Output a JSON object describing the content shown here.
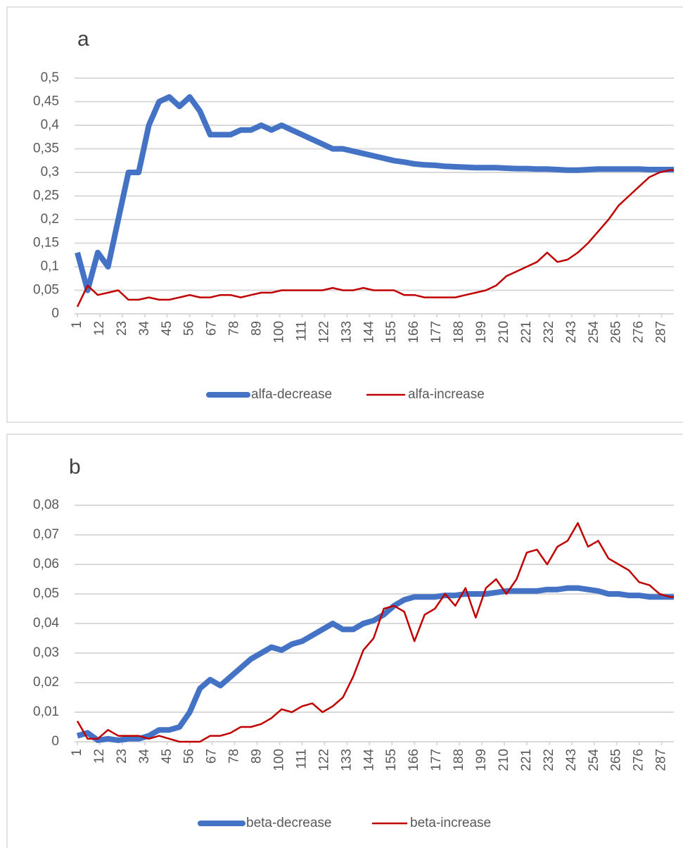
{
  "chart_data": [
    {
      "type": "line",
      "title": "a",
      "x": [
        1,
        6,
        11,
        16,
        21,
        26,
        31,
        36,
        41,
        46,
        51,
        56,
        61,
        66,
        71,
        76,
        81,
        86,
        91,
        96,
        101,
        106,
        111,
        116,
        121,
        126,
        131,
        136,
        141,
        146,
        151,
        156,
        161,
        166,
        171,
        176,
        181,
        186,
        191,
        196,
        201,
        206,
        211,
        216,
        221,
        226,
        231,
        236,
        241,
        246,
        251,
        256,
        261,
        266,
        271,
        276,
        281,
        286,
        291,
        293
      ],
      "xlim": [
        1,
        293
      ],
      "xticks": [
        1,
        12,
        23,
        34,
        45,
        56,
        67,
        78,
        89,
        100,
        111,
        122,
        133,
        144,
        155,
        166,
        177,
        188,
        199,
        210,
        221,
        232,
        243,
        254,
        265,
        276,
        287
      ],
      "ylim": [
        0,
        0.5
      ],
      "yticks": [
        0,
        {
          "value": 0.05,
          "label": "0,05"
        },
        {
          "value": 0.1,
          "label": "0,1"
        },
        {
          "value": 0.15,
          "label": "0,15"
        },
        {
          "value": 0.2,
          "label": "0,2"
        },
        {
          "value": 0.25,
          "label": "0,25"
        },
        {
          "value": 0.3,
          "label": "0,3"
        },
        {
          "value": 0.35,
          "label": "0,35"
        },
        {
          "value": 0.4,
          "label": "0,4"
        },
        {
          "value": 0.45,
          "label": "0,45"
        },
        {
          "value": 0.5,
          "label": "0,5"
        }
      ],
      "grid": true,
      "legend": "bottom",
      "series": [
        {
          "name": "alfa-decrease",
          "color": "#4472c4",
          "values": [
            0.13,
            0.05,
            0.13,
            0.1,
            0.2,
            0.3,
            0.3,
            0.4,
            0.45,
            0.46,
            0.44,
            0.46,
            0.43,
            0.38,
            0.38,
            0.38,
            0.39,
            0.39,
            0.4,
            0.39,
            0.4,
            0.39,
            0.38,
            0.37,
            0.36,
            0.35,
            0.35,
            0.345,
            0.34,
            0.335,
            0.33,
            0.325,
            0.322,
            0.318,
            0.316,
            0.315,
            0.313,
            0.312,
            0.311,
            0.31,
            0.31,
            0.31,
            0.309,
            0.308,
            0.308,
            0.307,
            0.307,
            0.306,
            0.305,
            0.305,
            0.306,
            0.307,
            0.307,
            0.307,
            0.307,
            0.307,
            0.306,
            0.306,
            0.306,
            0.306
          ]
        },
        {
          "name": "alfa-increase",
          "color": "#c00000",
          "values": [
            0.015,
            0.06,
            0.04,
            0.045,
            0.05,
            0.03,
            0.03,
            0.035,
            0.03,
            0.03,
            0.035,
            0.04,
            0.035,
            0.035,
            0.04,
            0.04,
            0.035,
            0.04,
            0.045,
            0.045,
            0.05,
            0.05,
            0.05,
            0.05,
            0.05,
            0.055,
            0.05,
            0.05,
            0.055,
            0.05,
            0.05,
            0.05,
            0.04,
            0.04,
            0.035,
            0.035,
            0.035,
            0.035,
            0.04,
            0.045,
            0.05,
            0.06,
            0.08,
            0.09,
            0.1,
            0.11,
            0.13,
            0.11,
            0.115,
            0.13,
            0.15,
            0.175,
            0.2,
            0.23,
            0.25,
            0.27,
            0.29,
            0.3,
            0.305,
            0.305
          ]
        }
      ]
    },
    {
      "type": "line",
      "title": "b",
      "x": [
        1,
        6,
        11,
        16,
        21,
        26,
        31,
        36,
        41,
        46,
        51,
        56,
        61,
        66,
        71,
        76,
        81,
        86,
        91,
        96,
        101,
        106,
        111,
        116,
        121,
        126,
        131,
        136,
        141,
        146,
        151,
        156,
        161,
        166,
        171,
        176,
        181,
        186,
        191,
        196,
        201,
        206,
        211,
        216,
        221,
        226,
        231,
        236,
        241,
        246,
        251,
        256,
        261,
        266,
        271,
        276,
        281,
        286,
        291,
        293
      ],
      "xlim": [
        1,
        293
      ],
      "xticks": [
        1,
        12,
        23,
        34,
        45,
        56,
        67,
        78,
        89,
        100,
        111,
        122,
        133,
        144,
        155,
        166,
        177,
        188,
        199,
        210,
        221,
        232,
        243,
        254,
        265,
        276,
        287
      ],
      "ylim": [
        0,
        0.08
      ],
      "yticks": [
        0,
        {
          "value": 0.01,
          "label": "0,01"
        },
        {
          "value": 0.02,
          "label": "0,02"
        },
        {
          "value": 0.03,
          "label": "0,03"
        },
        {
          "value": 0.04,
          "label": "0,04"
        },
        {
          "value": 0.05,
          "label": "0,05"
        },
        {
          "value": 0.06,
          "label": "0,06"
        },
        {
          "value": 0.07,
          "label": "0,07"
        },
        {
          "value": 0.08,
          "label": "0,08"
        }
      ],
      "grid": true,
      "legend": "bottom",
      "series": [
        {
          "name": "beta-decrease",
          "color": "#4472c4",
          "values": [
            0.002,
            0.003,
            0.0005,
            0.001,
            0.0005,
            0.001,
            0.001,
            0.002,
            0.004,
            0.004,
            0.005,
            0.01,
            0.018,
            0.021,
            0.019,
            0.022,
            0.025,
            0.028,
            0.03,
            0.032,
            0.031,
            0.033,
            0.034,
            0.036,
            0.038,
            0.04,
            0.038,
            0.038,
            0.04,
            0.041,
            0.043,
            0.046,
            0.048,
            0.049,
            0.049,
            0.049,
            0.0495,
            0.0495,
            0.05,
            0.05,
            0.05,
            0.0505,
            0.051,
            0.051,
            0.051,
            0.051,
            0.0515,
            0.0515,
            0.052,
            0.052,
            0.0515,
            0.051,
            0.05,
            0.05,
            0.0495,
            0.0495,
            0.049,
            0.049,
            0.049,
            0.049
          ]
        },
        {
          "name": "beta-increase",
          "color": "#c00000",
          "values": [
            0.007,
            0.001,
            0.001,
            0.004,
            0.002,
            0.002,
            0.002,
            0.001,
            0.002,
            0.001,
            0,
            0,
            0,
            0.002,
            0.002,
            0.003,
            0.005,
            0.005,
            0.006,
            0.008,
            0.011,
            0.01,
            0.012,
            0.013,
            0.01,
            0.012,
            0.015,
            0.022,
            0.031,
            0.035,
            0.045,
            0.046,
            0.044,
            0.034,
            0.043,
            0.045,
            0.05,
            0.046,
            0.052,
            0.042,
            0.052,
            0.055,
            0.05,
            0.055,
            0.064,
            0.065,
            0.06,
            0.066,
            0.068,
            0.074,
            0.066,
            0.068,
            0.062,
            0.06,
            0.058,
            0.054,
            0.053,
            0.05,
            0.049,
            0.049
          ]
        }
      ]
    }
  ]
}
